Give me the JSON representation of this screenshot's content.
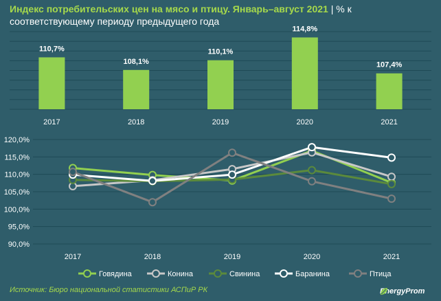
{
  "header": {
    "title": "Индекс потребительских цен на мясо и птицу. Январь–август 2021",
    "separator": "|",
    "unit": "% к соответствующему периоду предыдущего года"
  },
  "colors": {
    "background": "#2f5d6a",
    "bar": "#92d050",
    "title": "#a6d94b",
    "text": "#ffffff",
    "grid": "#1f4a56"
  },
  "chart_data": [
    {
      "type": "bar",
      "categories": [
        "2017",
        "2018",
        "2019",
        "2020",
        "2021"
      ],
      "values": [
        110.7,
        108.1,
        110.1,
        114.8,
        107.4
      ],
      "value_labels": [
        "110,7%",
        "108,1%",
        "110,1%",
        "114,8%",
        "107,4%"
      ],
      "ylim": [
        100,
        116
      ],
      "grid": true,
      "y_axis_shown": false
    },
    {
      "type": "line",
      "x": [
        "2017",
        "2018",
        "2019",
        "2020",
        "2021"
      ],
      "ylim": [
        90,
        120
      ],
      "yticks": [
        90,
        95,
        100,
        105,
        110,
        115,
        120
      ],
      "ytick_labels": [
        "90,0%",
        "95,0%",
        "100,0%",
        "105,0%",
        "110,0%",
        "115,0%",
        "120,0%"
      ],
      "grid": true,
      "legend_position": "bottom",
      "series": [
        {
          "name": "Говядина",
          "color": "#92d050",
          "values": [
            111.8,
            109.8,
            108.2,
            116.8,
            107.6
          ]
        },
        {
          "name": "Конина",
          "color": "#c8c8c8",
          "values": [
            106.6,
            108.3,
            111.5,
            116.3,
            109.3
          ]
        },
        {
          "name": "Свинина",
          "color": "#5b8a3c",
          "values": [
            108.4,
            108.0,
            108.5,
            111.2,
            107.2
          ]
        },
        {
          "name": "Баранина",
          "color": "#ffffff",
          "values": [
            109.9,
            108.1,
            109.9,
            117.8,
            114.8
          ]
        },
        {
          "name": "Птица",
          "color": "#808080",
          "values": [
            110.7,
            102.0,
            116.2,
            108.0,
            103.0
          ]
        }
      ]
    }
  ],
  "footer": {
    "source": "Источник: Бюро национальной статистики АСПиР РК",
    "logo_text": "EnergyProm"
  }
}
